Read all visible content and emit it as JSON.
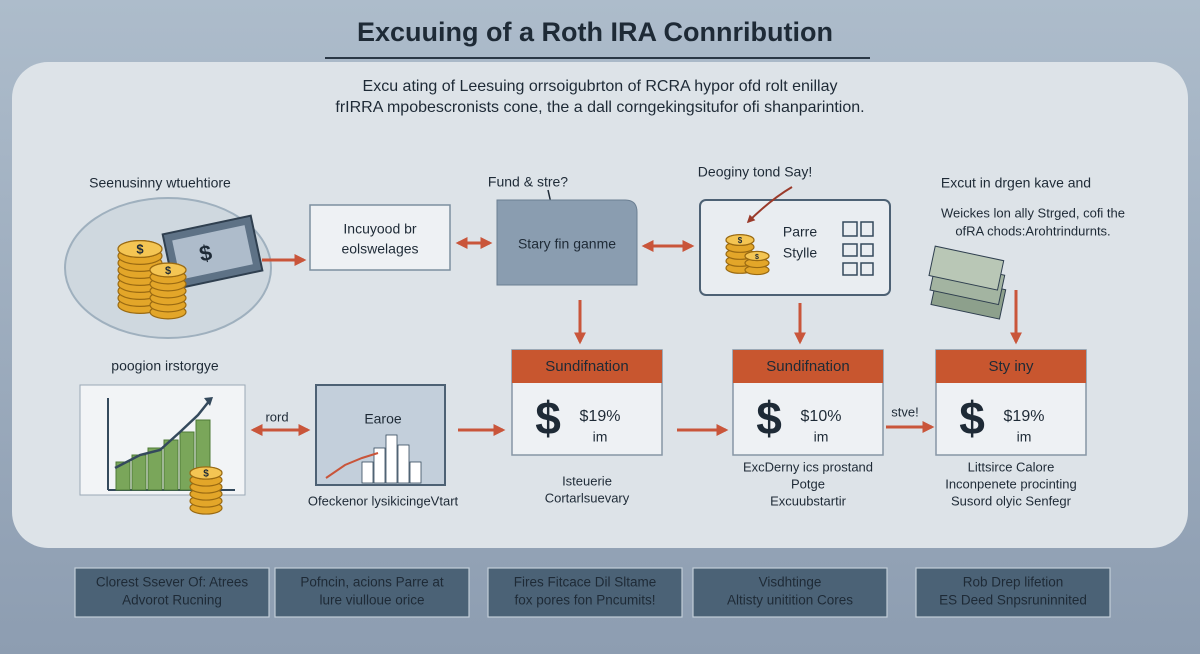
{
  "header": {
    "title": "Excuuing of a Roth IRA Connribution",
    "subtitle": [
      "Excu ating of Leesuing orrsoigubrton of  RCRA hypor ofd rolt enillay",
      "frIRRA mpobescronists cone, the a dall corngekingsitufor ofi shanparintion."
    ]
  },
  "currency_symbol": "$",
  "left_column": {
    "top_label": "Seenusinny wtuehtiore",
    "bottom_label": "poogion irstorgye",
    "connector_label": "rord"
  },
  "flow_top": {
    "box_1": [
      "Incuyood br",
      "eolswelages"
    ],
    "box_2": {
      "caption": "Fund & stre?",
      "label": "Stary fin ganme"
    },
    "box_3": {
      "caption": "Deoginy tond Say!",
      "label": [
        "Parre",
        "Stylle"
      ]
    },
    "right": {
      "caption": "Excut in drgen kave and",
      "description": [
        "Weickes lon ally Strged, cofi the",
        "ofRA chods:Arohtrindurnts."
      ]
    }
  },
  "chart_box": {
    "title": "Earoe",
    "caption": "Ofeckenor lysikicingeVtart"
  },
  "card_connector_label": "stve!",
  "cards": [
    {
      "header": "Sundifnation",
      "value": "$19%",
      "unit": "im",
      "notes": [
        "Isteuerie",
        "Cortarlsuevary"
      ]
    },
    {
      "header": "Sundifnation",
      "value": "$10%",
      "unit": "im",
      "notes": [
        "ExcDerny ics prostand",
        "Potge",
        "Excuubstartir"
      ]
    },
    {
      "header": "Sty iny",
      "value": "$19%",
      "unit": "im",
      "notes": [
        "Littsirce Calore",
        "Inconpenete procinting",
        "Susord olyic Senfegr"
      ]
    }
  ],
  "buttons": [
    [
      "Clorest Ssever Of: Atrees",
      "Advorot Rucning"
    ],
    [
      "Pofncin, acions Parre at",
      "lure viulloue orice"
    ],
    [
      "Fires Fitcace Dil Sltame",
      "fox pores fon Pncumits!"
    ],
    [
      "Visdhtinge",
      "Altisty unitition Cores"
    ],
    [
      "Rob Drep lifetion",
      "ES Deed Snpsruninnited"
    ]
  ]
}
